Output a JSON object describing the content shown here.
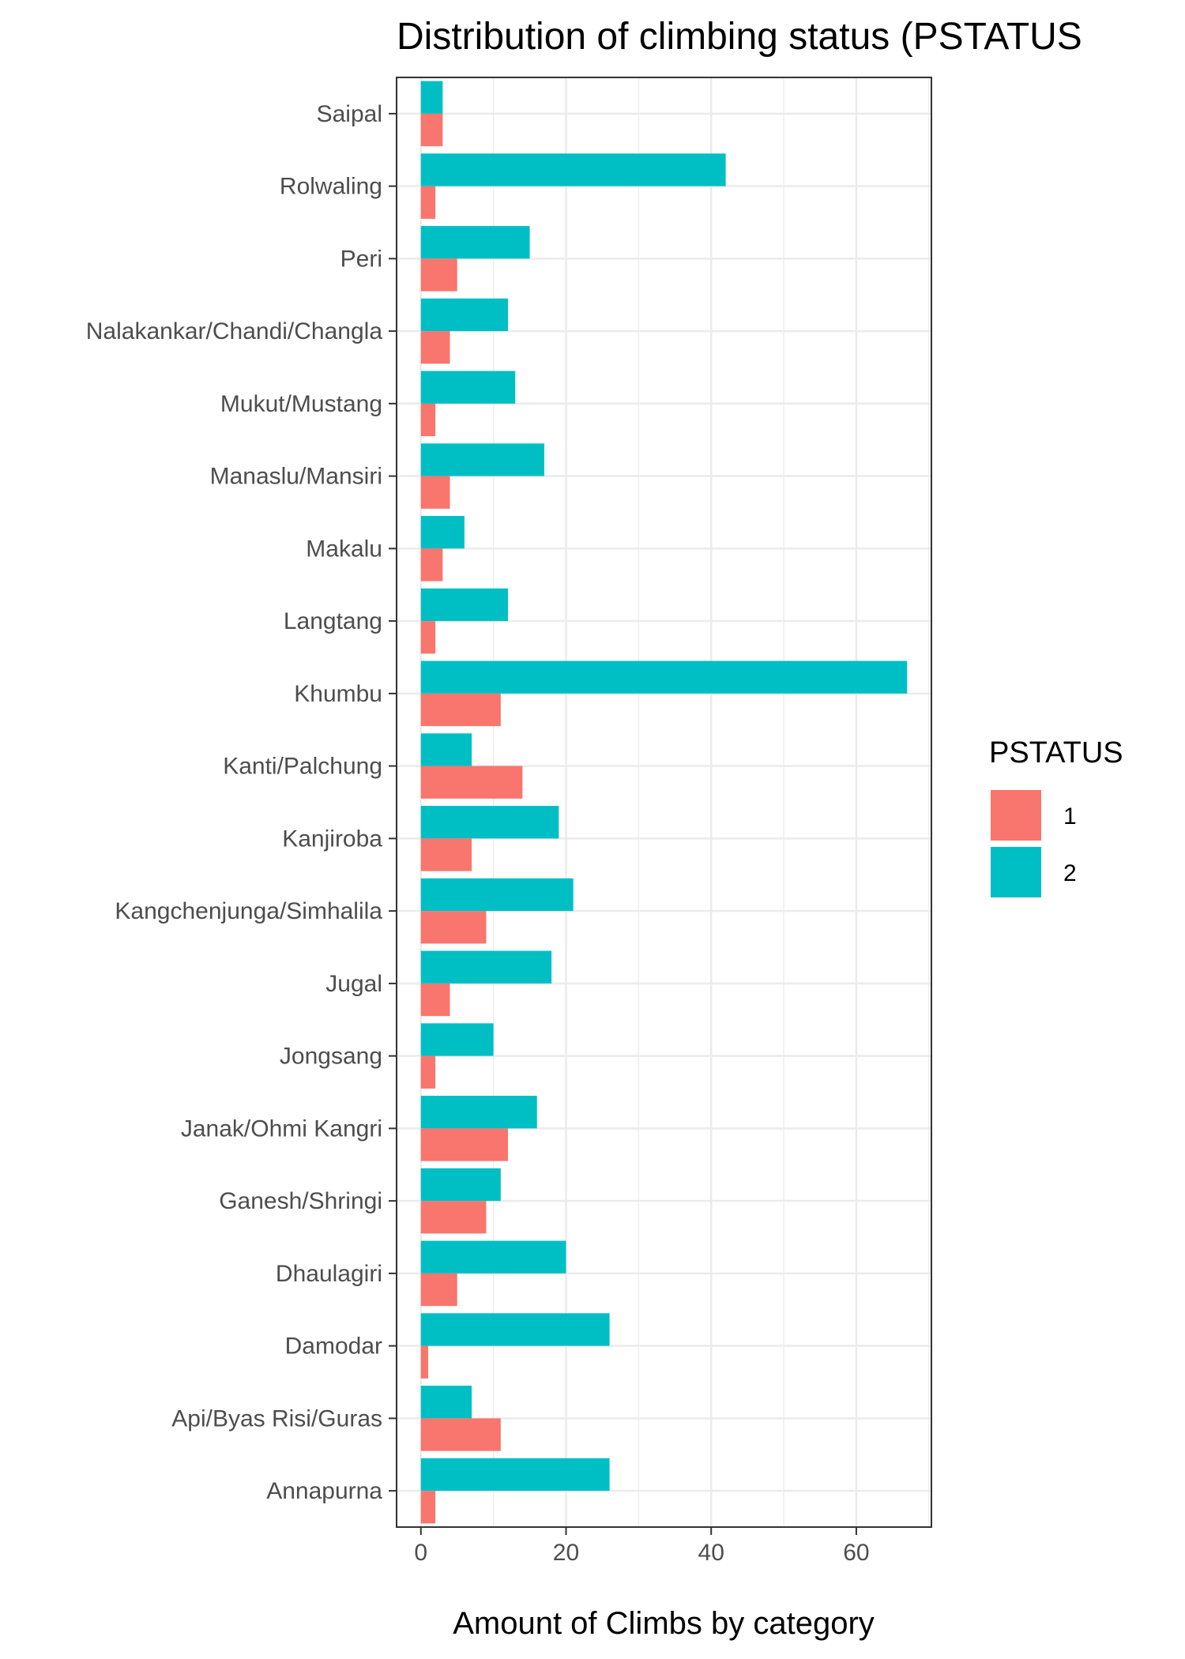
{
  "chart_data": {
    "type": "bar",
    "orientation": "horizontal",
    "title": "Distribution of climbing status (PSTATUS",
    "xlabel": "Amount of Climbs by category",
    "ylabel": "",
    "xlim": [
      -3.35,
      70.35
    ],
    "x_ticks": [
      0,
      20,
      40,
      60
    ],
    "grid": true,
    "legend_position": "right",
    "legend_title": "PSTATUS",
    "categories": [
      "Annapurna",
      "Api/Byas Risi/Guras",
      "Damodar",
      "Dhaulagiri",
      "Ganesh/Shringi",
      "Janak/Ohmi Kangri",
      "Jongsang",
      "Jugal",
      "Kangchenjunga/Simhalila",
      "Kanjiroba",
      "Kanti/Palchung",
      "Khumbu",
      "Langtang",
      "Makalu",
      "Manaslu/Mansiri",
      "Mukut/Mustang",
      "Nalakankar/Chandi/Changla",
      "Peri",
      "Rolwaling",
      "Saipal"
    ],
    "series": [
      {
        "name": "1",
        "color": "#F8766D",
        "values": [
          2,
          11,
          1,
          5,
          9,
          12,
          2,
          4,
          9,
          7,
          14,
          11,
          2,
          3,
          4,
          2,
          4,
          5,
          2,
          3
        ]
      },
      {
        "name": "2",
        "color": "#00BFC4",
        "values": [
          26,
          7,
          26,
          20,
          11,
          16,
          10,
          18,
          21,
          19,
          7,
          67,
          12,
          6,
          17,
          13,
          12,
          15,
          42,
          3
        ]
      }
    ]
  }
}
